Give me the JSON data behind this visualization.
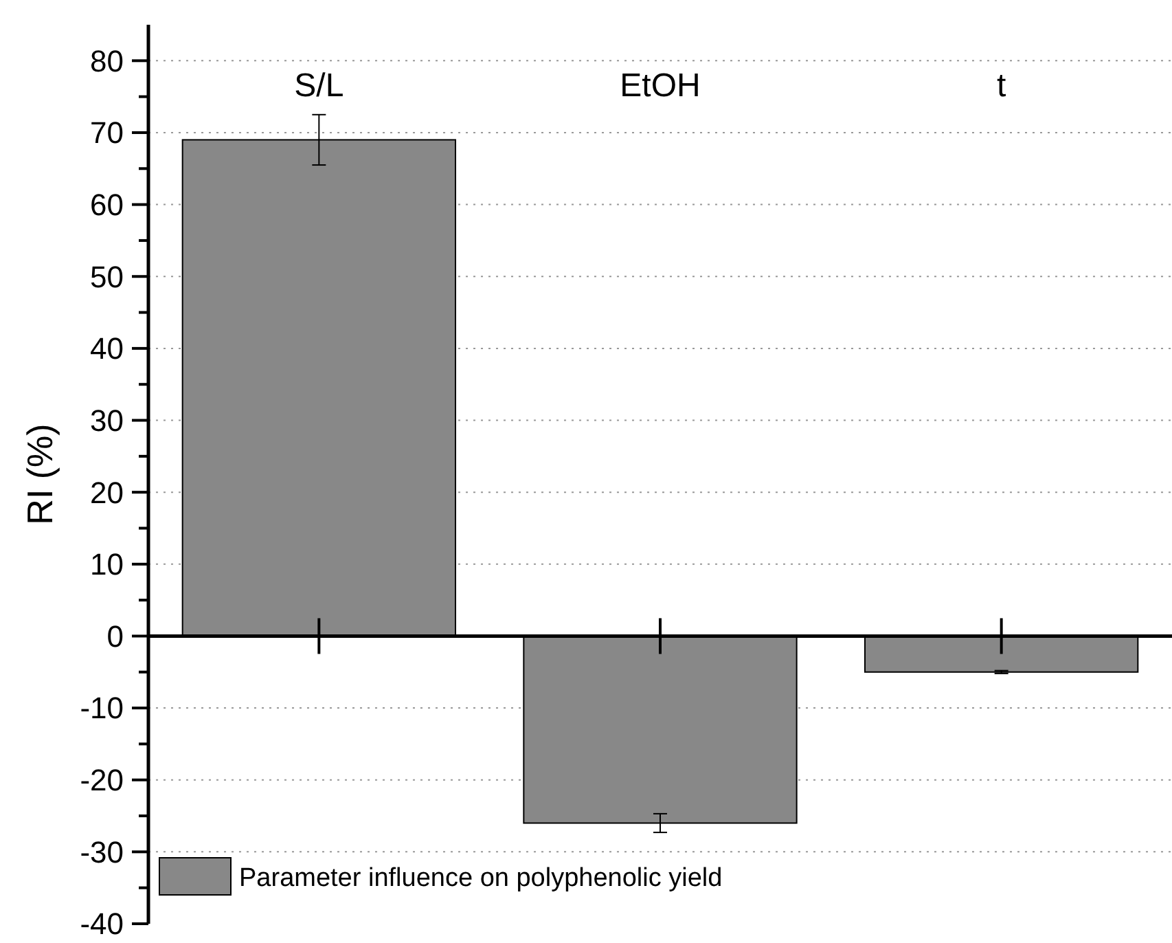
{
  "chart_data": {
    "type": "bar",
    "ylabel": "RI (%)",
    "categories": [
      "S/L",
      "EtOH",
      "t"
    ],
    "series": [
      {
        "name": "Parameter influence on polyphenolic yield",
        "color": "#888888",
        "values": [
          69,
          -26,
          -5
        ],
        "errors": [
          3.5,
          1.3,
          0.2
        ]
      }
    ],
    "ylim": [
      -40,
      85
    ],
    "yticks": [
      -40,
      {
        "value": -35,
        "label": null
      },
      -30,
      {
        "value": -25,
        "label": null
      },
      -20,
      {
        "value": -15,
        "label": null
      },
      -10,
      {
        "value": -5,
        "label": null
      },
      0,
      {
        "value": 5,
        "label": null
      },
      10,
      {
        "value": 15,
        "label": null
      },
      20,
      {
        "value": 25,
        "label": null
      },
      30,
      {
        "value": 35,
        "label": null
      },
      40,
      {
        "value": 45,
        "label": null
      },
      50,
      {
        "value": 55,
        "label": null
      },
      60,
      {
        "value": 65,
        "label": null
      },
      70,
      {
        "value": 75,
        "label": null
      },
      80
    ],
    "grid": "y",
    "legend": "bottom left"
  }
}
